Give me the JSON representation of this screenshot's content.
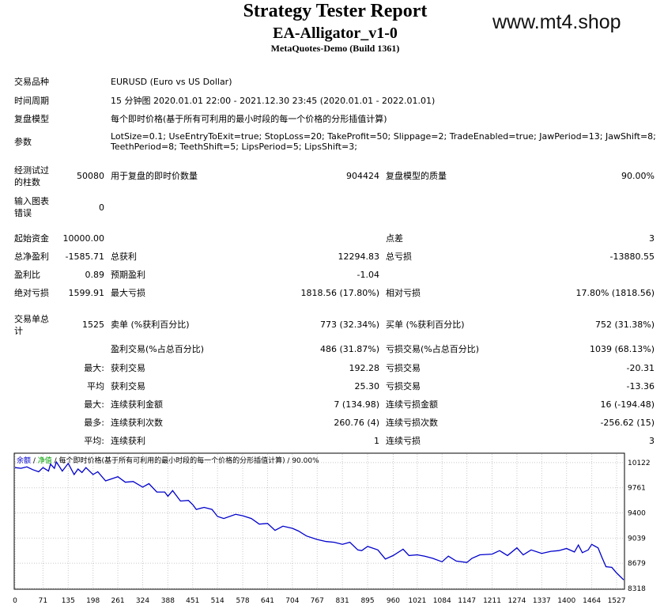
{
  "header": {
    "title": "Strategy Tester Report",
    "ea_name": "EA-Alligator_v1-0",
    "build": "MetaQuotes-Demo (Build 1361)",
    "watermark": "www.mt4.shop"
  },
  "settings": {
    "symbol_label": "交易品种",
    "symbol_value": "EURUSD (Euro vs US Dollar)",
    "period_label": "时间周期",
    "period_value": "15 分钟图 2020.01.01 22:00 - 2021.12.30 23:45 (2020.01.01 - 2022.01.01)",
    "model_label": "复盘模型",
    "model_value": "每个即时价格(基于所有可利用的最小时段的每一个价格的分形插值计算)",
    "params_label": "参数",
    "params_line1": "LotSize=0.1; UseEntryToExit=true; StopLoss=20; TakeProfit=50; Slippage=2; TradeEnabled=true; JawPeriod=13; JawShift=8;",
    "params_line2": "TeethPeriod=8; TeethShift=5; LipsPeriod=5; LipsShift=3;"
  },
  "quality": {
    "bars_label_1": "经测试过",
    "bars_label_2": "的柱数",
    "bars_value": "50080",
    "ticks_label": "用于复盘的即时价数量",
    "ticks_value": "904424",
    "model_quality_label": "复盘模型的质量",
    "model_quality_value": "90.00%",
    "errors_label_1": "输入图表",
    "errors_label_2": "错误",
    "errors_value": "0"
  },
  "results": {
    "deposit_label": "起始资金",
    "deposit_value": "10000.00",
    "spread_label": "点差",
    "spread_value": "3",
    "net_profit_label": "总净盈利",
    "net_profit_value": "-1585.71",
    "gross_profit_label": "总获利",
    "gross_profit_value": "12294.83",
    "gross_loss_label": "总亏损",
    "gross_loss_value": "-13880.55",
    "profit_factor_label": "盈利比",
    "profit_factor_value": "0.89",
    "expected_payoff_label": "预期盈利",
    "expected_payoff_value": "-1.04",
    "abs_dd_label": "绝对亏损",
    "abs_dd_value": "1599.91",
    "max_dd_label": "最大亏损",
    "max_dd_value": "1818.56 (17.80%)",
    "rel_dd_label": "相对亏损",
    "rel_dd_value": "17.80% (1818.56)"
  },
  "trades": {
    "total_label_1": "交易单总",
    "total_label_2": "计",
    "total_value": "1525",
    "short_label": "卖单 (%获利百分比)",
    "short_value": "773 (32.34%)",
    "long_label": "买单 (%获利百分比)",
    "long_value": "752 (31.38%)",
    "profit_trades_label": "盈利交易(%占总百分比)",
    "profit_trades_value": "486 (31.87%)",
    "loss_trades_label": "亏损交易(%占总百分比)",
    "loss_trades_value": "1039 (68.13%)",
    "largest_prefix": "最大:",
    "largest_profit_label": "获利交易",
    "largest_profit_value": "192.28",
    "largest_loss_label": "亏损交易",
    "largest_loss_value": "-20.31",
    "average_prefix": "平均",
    "avg_profit_label": "获利交易",
    "avg_profit_value": "25.30",
    "avg_loss_label": "亏损交易",
    "avg_loss_value": "-13.36",
    "max_consec_prefix": "最大:",
    "max_consec_wins_label": "连续获利金额",
    "max_consec_wins_value": "7 (134.98)",
    "max_consec_losses_label": "连续亏损金额",
    "max_consec_losses_value": "16 (-194.48)",
    "maximal_prefix": "最多:",
    "maximal_consec_profit_label": "连续获利次数",
    "maximal_consec_profit_value": "260.76 (4)",
    "maximal_consec_loss_label": "连续亏损次数",
    "maximal_consec_loss_value": "-256.62 (15)",
    "avg_consec_prefix": "平均:",
    "avg_consec_wins_label": "连续获利",
    "avg_consec_wins_value": "1",
    "avg_consec_losses_label": "连续亏损",
    "avg_consec_losses_value": "3"
  },
  "chart_legend": {
    "balance": "余额",
    "sep1": " / ",
    "equity": "净值",
    "rest": " / 每个即时价格(基于所有可利用的最小时段的每一个价格的分形插值计算) / 90.00%"
  },
  "chart_data": {
    "type": "line",
    "series": [
      {
        "name": "余额",
        "color": "#0000cc",
        "x": [
          0,
          15,
          30,
          45,
          60,
          71,
          85,
          90,
          100,
          105,
          112,
          120,
          135,
          150,
          160,
          170,
          180,
          198,
          210,
          230,
          261,
          280,
          300,
          324,
          340,
          360,
          380,
          388,
          400,
          420,
          440,
          451,
          460,
          480,
          500,
          514,
          530,
          560,
          578,
          600,
          620,
          641,
          660,
          680,
          704,
          720,
          740,
          767,
          790,
          810,
          831,
          850,
          870,
          880,
          895,
          921,
          940,
          960,
          985,
          1000,
          1021,
          1040,
          1060,
          1084,
          1100,
          1120,
          1147,
          1160,
          1180,
          1211,
          1230,
          1250,
          1274,
          1290,
          1310,
          1337,
          1360,
          1380,
          1400,
          1420,
          1430,
          1440,
          1455,
          1464,
          1470,
          1480,
          1490,
          1500,
          1515,
          1527,
          1545
        ],
        "y": [
          10050,
          10040,
          10060,
          10020,
          9990,
          10050,
          10000,
          10100,
          10040,
          10130,
          10070,
          10000,
          10110,
          9950,
          10030,
          9980,
          10050,
          9950,
          9990,
          9860,
          9920,
          9840,
          9850,
          9770,
          9820,
          9700,
          9700,
          9640,
          9720,
          9570,
          9580,
          9520,
          9450,
          9480,
          9450,
          9350,
          9320,
          9380,
          9360,
          9320,
          9240,
          9250,
          9150,
          9210,
          9180,
          9140,
          9070,
          9020,
          8990,
          8980,
          8950,
          8980,
          8870,
          8860,
          8920,
          8870,
          8740,
          8790,
          8880,
          8790,
          8800,
          8780,
          8750,
          8700,
          8780,
          8710,
          8690,
          8750,
          8800,
          8810,
          8860,
          8790,
          8900,
          8800,
          8870,
          8820,
          8850,
          8860,
          8890,
          8840,
          8940,
          8830,
          8870,
          8950,
          8930,
          8900,
          8760,
          8630,
          8620,
          8540,
          8440
        ]
      }
    ],
    "xticks": [
      0,
      71,
      135,
      198,
      261,
      324,
      388,
      451,
      514,
      578,
      641,
      704,
      767,
      831,
      895,
      960,
      1021,
      1084,
      1147,
      1211,
      1274,
      1337,
      1400,
      1464,
      1527
    ],
    "yticks": [
      10122,
      9761,
      9400,
      9039,
      8679,
      8318
    ],
    "xlim": [
      0,
      1545
    ],
    "ylim": [
      8318,
      10245
    ]
  }
}
